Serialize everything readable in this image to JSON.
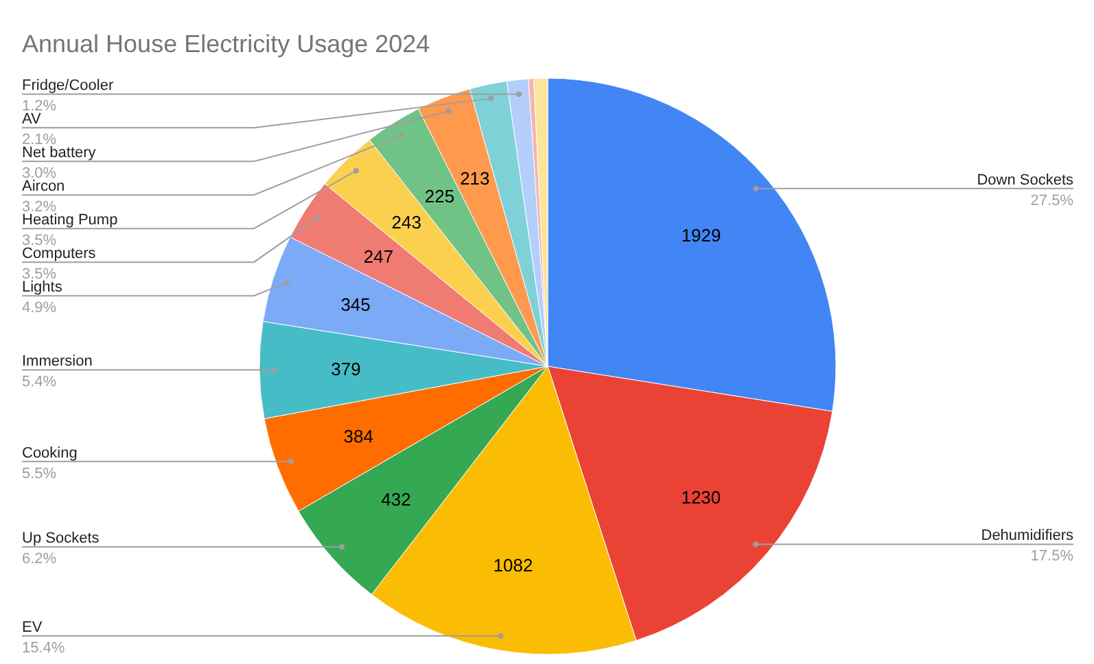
{
  "chart_data": {
    "type": "pie",
    "title": "Annual House Electricity Usage 2024",
    "categories": [
      "Down Sockets",
      "Dehumidifiers",
      "EV",
      "Up Sockets",
      "Cooking",
      "Immersion",
      "Lights",
      "Computers",
      "Heating Pump",
      "Aircon",
      "Net battery",
      "AV",
      "Fridge/Cooler",
      null,
      null
    ],
    "values": [
      1929,
      1230,
      1082,
      432,
      384,
      379,
      345,
      247,
      243,
      225,
      213,
      147,
      84,
      21,
      54
    ],
    "annotations": [
      "27.5%",
      "17.5%",
      "15.4%",
      "6.2%",
      "5.5%",
      "5.4%",
      "4.9%",
      "3.5%",
      "3.5%",
      "3.2%",
      "3.0%",
      "2.1%",
      "1.2%"
    ],
    "value_labels": [
      "1929",
      "1230",
      "1082",
      "432",
      "384",
      "379",
      "345",
      "247",
      "243",
      "225",
      "213",
      null,
      null,
      null,
      null
    ],
    "colors": [
      "#4285f4",
      "#ea4335",
      "#fbbc04",
      "#34a853",
      "#ff6d01",
      "#46bdc6",
      "#7baaf7",
      "#f07b72",
      "#fcd04f",
      "#71c287",
      "#ff994d",
      "#7ed1d7",
      "#b3cefb",
      "#f7b4ae",
      "#fde49b"
    ]
  }
}
